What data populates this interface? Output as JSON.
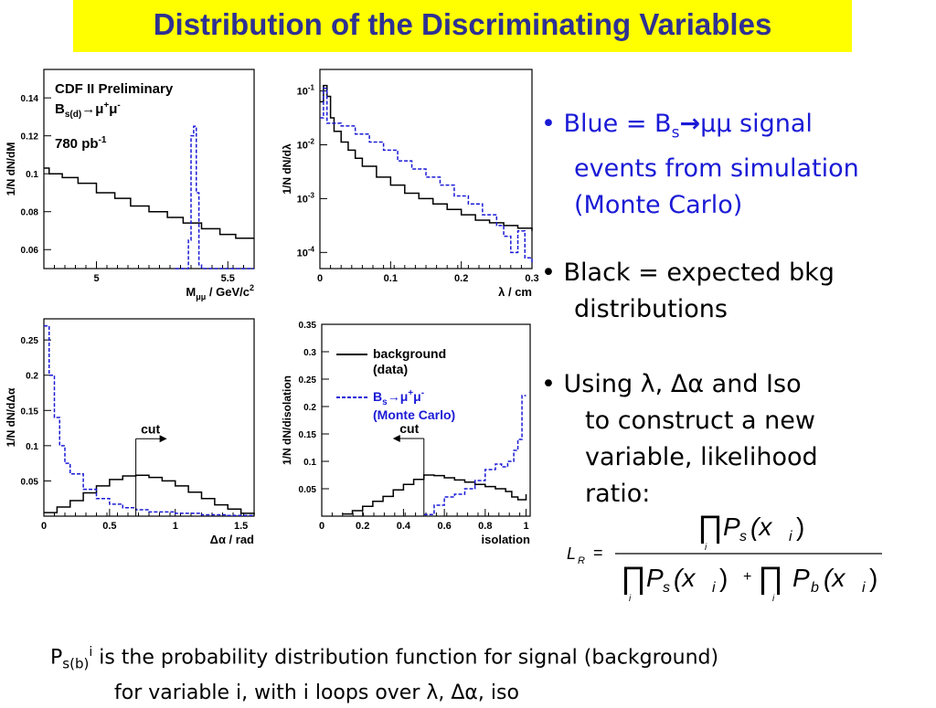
{
  "title": "Distribution of the Discriminating Variables",
  "colors": {
    "signal": "#1a1ad6",
    "background": "#000000",
    "title_bg": "#ffff00",
    "title_text": "#2e3192"
  },
  "bullets": [
    {
      "prefix": "• ",
      "text_a": "Blue = B",
      "sub": "s",
      "arrow": "→",
      "text_b": "μμ signal",
      "line2": "events from simulation",
      "line3": "(Monte Carlo)"
    },
    {
      "prefix": "• ",
      "line1": "Black = expected bkg",
      "line2": "distributions"
    },
    {
      "prefix": "•  ",
      "line1": "Using λ, Δα and Iso",
      "line2": "to construct a new",
      "line3": "variable, likelihood",
      "line4": "ratio:"
    }
  ],
  "formula": {
    "lhs": "L",
    "lhs_sub": "R",
    "eq": "=",
    "prod": "∏",
    "idx": "i",
    "Ps": "P",
    "s": "s",
    "Pb": "P",
    "b": "b",
    "x": "(x",
    "xi": "i",
    "close": ")",
    "plus": "+"
  },
  "footer": {
    "p": "P",
    "sub": "s(b)",
    "sup": "i",
    "line1": " is the probability distribution function for signal (background)",
    "line2": "for variable i, with i loops over λ, Δα, iso"
  },
  "chart_data": [
    {
      "type": "line",
      "id": "mass",
      "ylabel": "1/N dN/dM",
      "xlabel_main": "M",
      "xlabel_sub": "μμ",
      "xlabel_rest": " / GeV/c",
      "xlabel_sup": "2",
      "annotation": {
        "line1": "CDF II Preliminary",
        "line2_main": "B",
        "line2_sub": "s(d)",
        "line2_rest": "→μ",
        "line2_sup1": "+",
        "line2_mu": "μ",
        "line2_sup2": "-",
        "line3_main": "780 pb",
        "line3_sup": "-1"
      },
      "xlim": [
        4.8,
        5.6
      ],
      "ylim": [
        0.05,
        0.155
      ],
      "xticks": [
        5,
        5.5
      ],
      "xticklabels": [
        "5",
        "5.5"
      ],
      "yticks": [
        0.06,
        0.08,
        0.1,
        0.12,
        0.14
      ],
      "yticklabels": [
        "0.06",
        "0.08",
        "0.1",
        "0.12",
        "0.14"
      ],
      "series": [
        {
          "color": "#000000",
          "dash": false,
          "x": [
            4.8,
            4.82,
            4.82,
            4.87,
            4.87,
            4.93,
            4.93,
            5.0,
            5.0,
            5.07,
            5.07,
            5.13,
            5.13,
            5.2,
            5.2,
            5.27,
            5.27,
            5.33,
            5.33,
            5.4,
            5.4,
            5.47,
            5.47,
            5.53,
            5.53,
            5.6
          ],
          "y": [
            0.103,
            0.103,
            0.1,
            0.1,
            0.098,
            0.098,
            0.095,
            0.095,
            0.09,
            0.09,
            0.087,
            0.087,
            0.083,
            0.083,
            0.08,
            0.08,
            0.077,
            0.077,
            0.074,
            0.074,
            0.071,
            0.071,
            0.068,
            0.068,
            0.066,
            0.066
          ]
        },
        {
          "color": "#1a1ad6",
          "dash": true,
          "x": [
            5.3,
            5.35,
            5.35,
            5.36,
            5.36,
            5.37,
            5.37,
            5.38,
            5.38,
            5.39,
            5.39,
            5.4,
            5.4,
            5.6
          ],
          "y": [
            0.05,
            0.05,
            0.065,
            0.065,
            0.12,
            0.12,
            0.125,
            0.125,
            0.09,
            0.09,
            0.052,
            0.052,
            0.05,
            0.05
          ]
        }
      ]
    },
    {
      "type": "line",
      "id": "lambda",
      "ylabel": "1/N dN/dλ",
      "xlabel": "λ / cm",
      "xlim": [
        0,
        0.3
      ],
      "ylim_log10": [
        -4.3,
        -0.6
      ],
      "log_y": true,
      "xticks": [
        0,
        0.1,
        0.2,
        0.3
      ],
      "xticklabels": [
        "0",
        "0.1",
        "0.2",
        "0.3"
      ],
      "yticks_log10": [
        -4,
        -3,
        -2,
        -1
      ],
      "yticklabels": [
        "10-4",
        "10-3",
        "10-2",
        "10-1"
      ],
      "series": [
        {
          "color": "#000000",
          "dash": false,
          "x": [
            0,
            0.005,
            0.01,
            0.015,
            0.02,
            0.03,
            0.04,
            0.05,
            0.06,
            0.08,
            0.1,
            0.12,
            0.14,
            0.16,
            0.18,
            0.2,
            0.22,
            0.24,
            0.26,
            0.28,
            0.3
          ],
          "y": [
            -1.2,
            -0.9,
            -1.1,
            -1.5,
            -1.75,
            -1.95,
            -2.1,
            -2.25,
            -2.4,
            -2.6,
            -2.75,
            -2.9,
            -3.0,
            -3.1,
            -3.2,
            -3.3,
            -3.4,
            -3.45,
            -3.5,
            -3.55,
            -3.6
          ]
        },
        {
          "color": "#1a1ad6",
          "dash": true,
          "x": [
            0,
            0.005,
            0.01,
            0.02,
            0.03,
            0.05,
            0.07,
            0.09,
            0.11,
            0.13,
            0.15,
            0.17,
            0.19,
            0.21,
            0.23,
            0.25,
            0.26,
            0.27,
            0.28,
            0.29,
            0.3
          ],
          "y": [
            -1.5,
            -0.95,
            -1.6,
            -1.6,
            -1.65,
            -1.8,
            -1.95,
            -2.1,
            -2.3,
            -2.45,
            -2.6,
            -2.75,
            -2.95,
            -3.1,
            -3.3,
            -3.5,
            -3.7,
            -4.0,
            -3.6,
            -4.1,
            -4.2
          ]
        }
      ]
    },
    {
      "type": "line",
      "id": "dalpha",
      "ylabel": "1/N dN/dΔα",
      "xlabel": "Δα / rad",
      "xlim": [
        0,
        1.6
      ],
      "ylim": [
        0,
        0.28
      ],
      "xticks": [
        0,
        0.5,
        1,
        1.5
      ],
      "xticklabels": [
        "0",
        "0.5",
        "1",
        "1.5"
      ],
      "yticks": [
        0.05,
        0.1,
        0.15,
        0.2,
        0.25
      ],
      "yticklabels": [
        "0.05",
        "0.1",
        "0.15",
        "0.2",
        "0.25"
      ],
      "cut": {
        "x": 0.7,
        "label": "cut"
      },
      "series": [
        {
          "color": "#000000",
          "dash": false,
          "x": [
            0,
            0.1,
            0.2,
            0.3,
            0.4,
            0.5,
            0.6,
            0.7,
            0.8,
            0.9,
            1.0,
            1.1,
            1.2,
            1.3,
            1.4,
            1.5,
            1.6
          ],
          "y": [
            0.005,
            0.013,
            0.022,
            0.033,
            0.043,
            0.052,
            0.057,
            0.058,
            0.055,
            0.05,
            0.043,
            0.034,
            0.025,
            0.016,
            0.01,
            0.004,
            0.002
          ]
        },
        {
          "color": "#1a1ad6",
          "dash": true,
          "x": [
            0,
            0.04,
            0.08,
            0.12,
            0.16,
            0.2,
            0.3,
            0.4,
            0.5,
            0.6,
            0.7,
            0.8,
            1.0,
            1.2,
            1.4,
            1.6
          ],
          "y": [
            0.27,
            0.2,
            0.14,
            0.1,
            0.075,
            0.06,
            0.038,
            0.025,
            0.017,
            0.012,
            0.009,
            0.006,
            0.004,
            0.002,
            0.001,
            0.001
          ]
        }
      ]
    },
    {
      "type": "line",
      "id": "isolation",
      "ylabel": "1/N dN/disolation",
      "xlabel": "isolation",
      "xlim": [
        0,
        1.02
      ],
      "ylim": [
        0,
        0.35
      ],
      "xticks": [
        0,
        0.2,
        0.4,
        0.6,
        0.8,
        1
      ],
      "xticklabels": [
        "0",
        "0.2",
        "0.4",
        "0.6",
        "0.8",
        "1"
      ],
      "yticks": [
        0.05,
        0.1,
        0.15,
        0.2,
        0.25,
        0.3,
        0.35
      ],
      "yticklabels": [
        "0.05",
        "0.1",
        "0.15",
        "0.2",
        "0.25",
        "0.3",
        "0.35"
      ],
      "cut": {
        "x": 0.5,
        "label": "cut"
      },
      "legend": {
        "bkg1": "background",
        "bkg2": "(data)",
        "sig_main": "B",
        "sig_sub": "s",
        "sig_rest": "→μ",
        "sig_sup1": "+",
        "sig_mu": "μ",
        "sig_sup2": "-",
        "sig2": "(Monte Carlo)"
      },
      "series": [
        {
          "color": "#000000",
          "dash": false,
          "x": [
            0.1,
            0.15,
            0.2,
            0.25,
            0.3,
            0.35,
            0.4,
            0.45,
            0.5,
            0.55,
            0.6,
            0.65,
            0.7,
            0.75,
            0.8,
            0.85,
            0.9,
            0.93,
            0.96,
            1.0
          ],
          "y": [
            0.004,
            0.01,
            0.018,
            0.027,
            0.036,
            0.048,
            0.058,
            0.067,
            0.075,
            0.074,
            0.07,
            0.066,
            0.062,
            0.058,
            0.054,
            0.05,
            0.045,
            0.035,
            0.03,
            0.04
          ]
        },
        {
          "color": "#1a1ad6",
          "dash": true,
          "x": [
            0.5,
            0.55,
            0.6,
            0.65,
            0.7,
            0.75,
            0.8,
            0.85,
            0.88,
            0.91,
            0.94,
            0.96,
            0.98,
            1.0
          ],
          "y": [
            0.003,
            0.02,
            0.035,
            0.04,
            0.05,
            0.065,
            0.085,
            0.095,
            0.09,
            0.1,
            0.12,
            0.14,
            0.22,
            0.22
          ]
        }
      ]
    }
  ]
}
